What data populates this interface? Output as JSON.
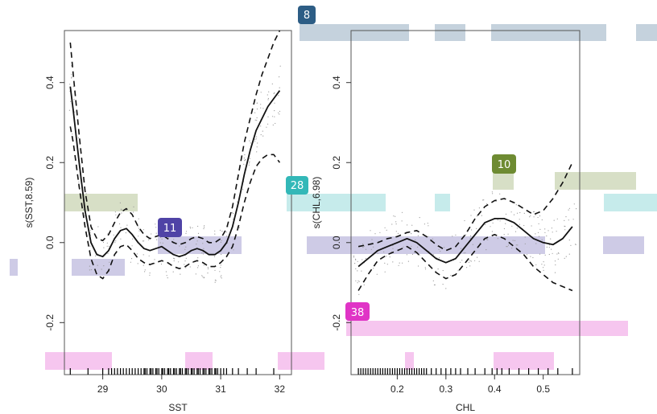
{
  "colors": {
    "blue": "#1f4e79",
    "teal": "#2ab5b3",
    "olive": "#6b8a2a",
    "indigo": "#4b3fa0",
    "magenta": "#e334c8"
  },
  "badges": [
    {
      "id": "8",
      "label": "8",
      "color": "#2d5d85"
    },
    {
      "id": "28",
      "label": "28",
      "color": "#33b8b8"
    },
    {
      "id": "10",
      "label": "10",
      "color": "#6e8b32"
    },
    {
      "id": "11",
      "label": "11",
      "color": "#4f43a6"
    },
    {
      "id": "38",
      "label": "38",
      "color": "#e034c6"
    }
  ],
  "chart_data": [
    {
      "type": "line",
      "title": "",
      "xlabel": "SST",
      "ylabel": "s(SST,8.59)",
      "xlim": [
        28.35,
        32.2
      ],
      "ylim": [
        -0.33,
        0.53
      ],
      "xticks": [
        "29",
        "30",
        "31",
        "32"
      ],
      "yticks": [
        "-0.2",
        "0.0",
        "0.2",
        "0.4"
      ],
      "x": [
        28.45,
        28.5,
        28.6,
        28.7,
        28.8,
        28.9,
        29.0,
        29.1,
        29.2,
        29.3,
        29.4,
        29.5,
        29.6,
        29.7,
        29.8,
        29.9,
        30.0,
        30.1,
        30.2,
        30.3,
        30.4,
        30.5,
        30.6,
        30.7,
        30.8,
        30.9,
        31.0,
        31.1,
        31.2,
        31.3,
        31.4,
        31.5,
        31.6,
        31.7,
        31.8,
        31.9,
        32.0
      ],
      "series": [
        {
          "values": [
            0.39,
            0.33,
            0.2,
            0.08,
            0.0,
            -0.03,
            -0.035,
            -0.02,
            0.01,
            0.03,
            0.035,
            0.02,
            0.0,
            -0.015,
            -0.02,
            -0.015,
            -0.01,
            -0.02,
            -0.03,
            -0.035,
            -0.03,
            -0.02,
            -0.015,
            -0.02,
            -0.03,
            -0.03,
            -0.02,
            0.0,
            0.04,
            0.1,
            0.17,
            0.23,
            0.28,
            0.31,
            0.34,
            0.36,
            0.38
          ]
        },
        {
          "values": [
            0.5,
            0.42,
            0.27,
            0.13,
            0.04,
            0.01,
            0.005,
            0.02,
            0.05,
            0.075,
            0.085,
            0.07,
            0.04,
            0.02,
            0.01,
            0.015,
            0.02,
            0.01,
            0.0,
            -0.005,
            0.0,
            0.01,
            0.015,
            0.01,
            0.0,
            0.0,
            0.01,
            0.035,
            0.09,
            0.17,
            0.25,
            0.31,
            0.37,
            0.42,
            0.46,
            0.5,
            0.53
          ]
        },
        {
          "values": [
            0.29,
            0.25,
            0.14,
            0.04,
            -0.04,
            -0.08,
            -0.09,
            -0.07,
            -0.03,
            -0.01,
            -0.005,
            -0.02,
            -0.04,
            -0.05,
            -0.055,
            -0.05,
            -0.045,
            -0.05,
            -0.06,
            -0.065,
            -0.06,
            -0.05,
            -0.045,
            -0.05,
            -0.06,
            -0.06,
            -0.05,
            -0.035,
            -0.01,
            0.04,
            0.1,
            0.15,
            0.19,
            0.21,
            0.22,
            0.22,
            0.2
          ]
        }
      ],
      "rug_x": [
        28.45,
        28.75,
        29.0,
        29.1,
        29.15,
        29.2,
        29.25,
        29.3,
        29.35,
        29.4,
        29.45,
        29.5,
        29.55,
        29.6,
        29.65,
        29.7,
        29.72,
        29.75,
        29.8,
        29.82,
        29.85,
        29.9,
        29.92,
        29.95,
        30.0,
        30.02,
        30.05,
        30.1,
        30.12,
        30.15,
        30.2,
        30.22,
        30.25,
        30.3,
        30.32,
        30.35,
        30.4,
        30.42,
        30.45,
        30.5,
        30.52,
        30.55,
        30.6,
        30.62,
        30.65,
        30.7,
        30.72,
        30.75,
        30.8,
        30.82,
        30.85,
        30.9,
        30.92,
        30.95,
        31.0,
        31.05,
        31.1,
        31.2,
        31.3,
        31.45,
        31.6,
        31.9
      ],
      "grid": false
    },
    {
      "type": "line",
      "title": "",
      "xlabel": "CHL",
      "ylabel": "s(CHL,6.98)",
      "xlim": [
        0.105,
        0.575
      ],
      "ylim": [
        -0.33,
        0.53
      ],
      "xticks": [
        "0.2",
        "0.3",
        "0.4",
        "0.5"
      ],
      "yticks": [
        "-0.2",
        "0.0",
        "0.2",
        "0.4"
      ],
      "x": [
        0.12,
        0.14,
        0.16,
        0.18,
        0.2,
        0.22,
        0.24,
        0.26,
        0.28,
        0.3,
        0.32,
        0.34,
        0.36,
        0.38,
        0.4,
        0.42,
        0.44,
        0.46,
        0.48,
        0.5,
        0.52,
        0.54,
        0.56
      ],
      "series": [
        {
          "values": [
            -0.06,
            -0.04,
            -0.02,
            -0.01,
            0.0,
            0.01,
            0.0,
            -0.02,
            -0.04,
            -0.05,
            -0.04,
            -0.01,
            0.02,
            0.05,
            0.06,
            0.06,
            0.05,
            0.03,
            0.01,
            0.0,
            -0.005,
            0.01,
            0.04
          ]
        },
        {
          "values": [
            -0.01,
            -0.005,
            0.0,
            0.01,
            0.015,
            0.025,
            0.03,
            0.015,
            -0.005,
            -0.02,
            -0.01,
            0.02,
            0.06,
            0.09,
            0.105,
            0.11,
            0.1,
            0.085,
            0.07,
            0.08,
            0.11,
            0.15,
            0.2
          ]
        },
        {
          "values": [
            -0.12,
            -0.08,
            -0.045,
            -0.03,
            -0.02,
            -0.01,
            -0.025,
            -0.05,
            -0.075,
            -0.09,
            -0.08,
            -0.05,
            -0.02,
            0.01,
            0.02,
            0.01,
            -0.01,
            -0.03,
            -0.06,
            -0.08,
            -0.1,
            -0.11,
            -0.12
          ]
        }
      ],
      "rug_x": [
        0.12,
        0.125,
        0.13,
        0.135,
        0.14,
        0.145,
        0.15,
        0.155,
        0.16,
        0.165,
        0.17,
        0.175,
        0.18,
        0.185,
        0.19,
        0.195,
        0.2,
        0.205,
        0.21,
        0.215,
        0.22,
        0.225,
        0.23,
        0.235,
        0.24,
        0.245,
        0.25,
        0.255,
        0.26,
        0.27,
        0.28,
        0.29,
        0.3,
        0.31,
        0.32,
        0.33,
        0.345,
        0.36,
        0.38,
        0.395,
        0.405,
        0.415,
        0.43,
        0.45,
        0.47,
        0.49,
        0.51,
        0.53,
        0.56
      ],
      "grid": false
    }
  ]
}
